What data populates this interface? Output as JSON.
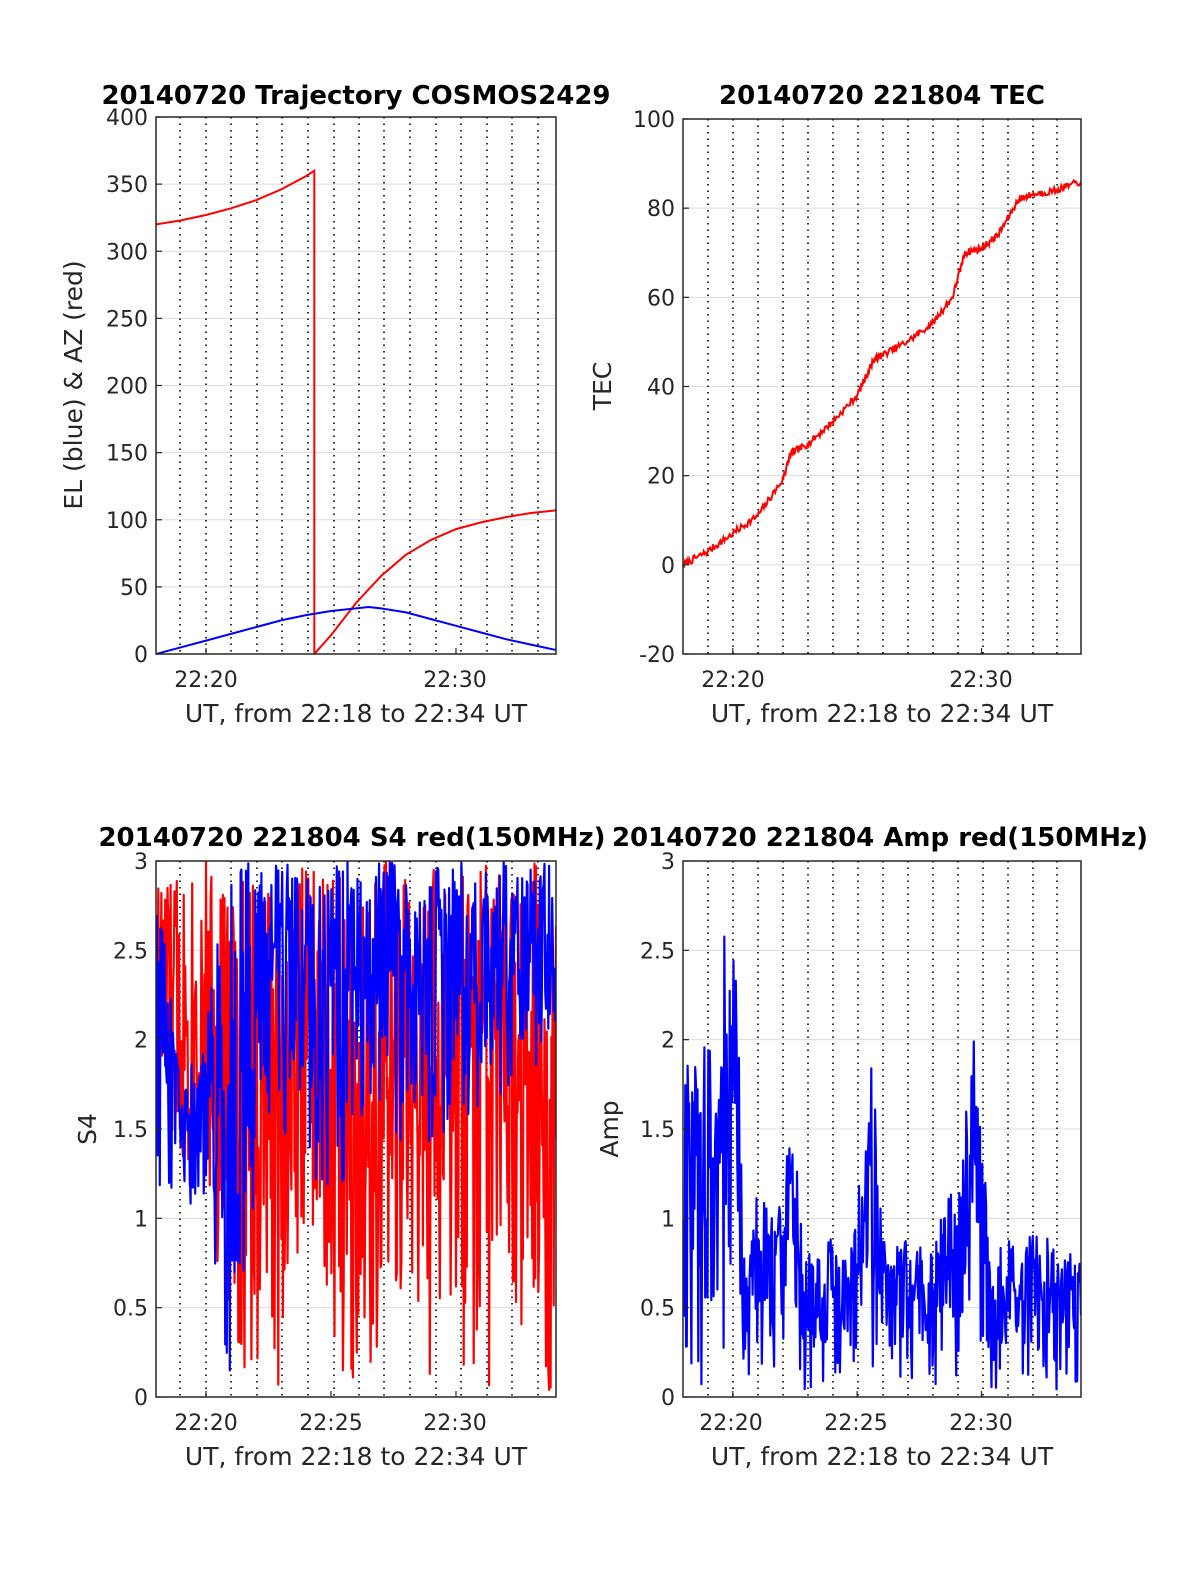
{
  "chart_data": [
    {
      "id": "traj",
      "type": "line",
      "title": "20140720 Trajectory COSMOS2429",
      "xlabel": "UT, from 22:18 to 22:34 UT",
      "ylabel": "EL (blue) & AZ (red)",
      "xlim": [
        "22:18",
        "22:34"
      ],
      "xtick_labels": [
        "22:20",
        "22:30"
      ],
      "ylim": [
        0,
        400
      ],
      "yticks": [
        0,
        50,
        100,
        150,
        200,
        250,
        300,
        350,
        400
      ],
      "grid": true,
      "series": [
        {
          "color": "#ff0000",
          "points": [
            [
              "22:18",
              320
            ],
            [
              "22:19",
              323
            ],
            [
              "22:20",
              327
            ],
            [
              "22:21",
              332
            ],
            [
              "22:22",
              338
            ],
            [
              "22:23",
              346
            ],
            [
              "22:24",
              356
            ],
            [
              "22:24:20",
              360
            ],
            [
              "22:24:20",
              0
            ],
            [
              "22:25",
              14
            ],
            [
              "22:26",
              38
            ],
            [
              "22:27",
              58
            ],
            [
              "22:28",
              74
            ],
            [
              "22:29",
              85
            ],
            [
              "22:30",
              93
            ],
            [
              "22:31",
              98
            ],
            [
              "22:32",
              102
            ],
            [
              "22:33",
              105
            ],
            [
              "22:34",
              107
            ]
          ]
        },
        {
          "color": "#0000ff",
          "points": [
            [
              "22:18",
              0
            ],
            [
              "22:19",
              5
            ],
            [
              "22:20",
              10
            ],
            [
              "22:21",
              15
            ],
            [
              "22:22",
              20
            ],
            [
              "22:23",
              25
            ],
            [
              "22:24",
              29
            ],
            [
              "22:25",
              32
            ],
            [
              "22:26",
              34
            ],
            [
              "22:26:30",
              35
            ],
            [
              "22:27",
              34
            ],
            [
              "22:28",
              31
            ],
            [
              "22:29",
              26
            ],
            [
              "22:30",
              21
            ],
            [
              "22:31",
              16
            ],
            [
              "22:32",
              11
            ],
            [
              "22:33",
              7
            ],
            [
              "22:34",
              3
            ]
          ]
        }
      ]
    },
    {
      "id": "tec",
      "type": "line",
      "title": "20140720 221804 TEC",
      "xlabel": "UT, from 22:18 to 22:34 UT",
      "ylabel": "TEC",
      "xlim": [
        "22:18",
        "22:34"
      ],
      "xtick_labels": [
        "22:20",
        "22:30"
      ],
      "ylim": [
        -20,
        100
      ],
      "yticks": [
        -20,
        0,
        20,
        40,
        60,
        80,
        100
      ],
      "grid": true,
      "series": [
        {
          "color": "#ff0000",
          "points": [
            [
              "22:18",
              0
            ],
            [
              "22:19",
              3
            ],
            [
              "22:20",
              7
            ],
            [
              "22:21",
              11
            ],
            [
              "22:22",
              19
            ],
            [
              "22:22:20",
              25
            ],
            [
              "22:23",
              27
            ],
            [
              "22:24",
              32
            ],
            [
              "22:25",
              38
            ],
            [
              "22:25:40",
              46
            ],
            [
              "22:26",
              47
            ],
            [
              "22:27",
              50
            ],
            [
              "22:28",
              54
            ],
            [
              "22:28:50",
              60
            ],
            [
              "22:29:20",
              70
            ],
            [
              "22:30",
              71
            ],
            [
              "22:30:40",
              74
            ],
            [
              "22:31:30",
              82
            ],
            [
              "22:32",
              83
            ],
            [
              "22:33",
              84
            ],
            [
              "22:34",
              86
            ]
          ]
        }
      ]
    },
    {
      "id": "s4",
      "type": "line",
      "title": "20140720 221804 S4 red(150MHz)",
      "xlabel": "UT, from 22:18 to 22:34 UT",
      "ylabel": "S4",
      "xlim": [
        "22:18",
        "22:34"
      ],
      "xtick_labels": [
        "22:20",
        "22:25",
        "22:30"
      ],
      "ylim": [
        0,
        3
      ],
      "yticks": [
        0,
        0.5,
        1,
        1.5,
        2,
        2.5,
        3
      ],
      "grid": true,
      "series": [
        {
          "color": "#ff0000",
          "envelope": [
            [
              "22:18",
              1.3,
              3
            ],
            [
              "22:19",
              1.1,
              3
            ],
            [
              "22:20",
              1.2,
              3
            ],
            [
              "22:21",
              0,
              3
            ],
            [
              "22:22",
              0,
              3
            ],
            [
              "22:23",
              0,
              3
            ],
            [
              "22:24",
              1.0,
              3
            ],
            [
              "22:25",
              0,
              3
            ],
            [
              "22:26",
              0,
              3
            ],
            [
              "22:27",
              0,
              3
            ],
            [
              "22:28",
              0,
              3
            ],
            [
              "22:29",
              0,
              3
            ],
            [
              "22:30",
              0,
              3
            ],
            [
              "22:31",
              0,
              3
            ],
            [
              "22:32",
              0,
              3
            ],
            [
              "22:33",
              0,
              3
            ],
            [
              "22:34",
              0,
              3
            ]
          ]
        },
        {
          "color": "#0000ff",
          "envelope": [
            [
              "22:18",
              1.2,
              3
            ],
            [
              "22:19",
              0.9,
              1.7
            ],
            [
              "22:20",
              0.9,
              2.2
            ],
            [
              "22:21",
              0,
              3
            ],
            [
              "22:22",
              1.1,
              3
            ],
            [
              "22:23",
              1.4,
              3
            ],
            [
              "22:24",
              1.3,
              3
            ],
            [
              "22:25",
              1.0,
              3
            ],
            [
              "22:26",
              1.1,
              3
            ],
            [
              "22:27",
              1.3,
              3
            ],
            [
              "22:28",
              1.4,
              3
            ],
            [
              "22:29",
              1.2,
              3
            ],
            [
              "22:30",
              1.5,
              3
            ],
            [
              "22:31",
              1.6,
              3
            ],
            [
              "22:32",
              1.7,
              3
            ],
            [
              "22:33",
              1.8,
              3
            ],
            [
              "22:34",
              2.0,
              3
            ]
          ]
        }
      ]
    },
    {
      "id": "amp",
      "type": "line",
      "title": "20140720 221804 Amp red(150MHz)",
      "xlabel": "UT, from 22:18 to 22:34 UT",
      "ylabel": "Amp",
      "xlim": [
        "22:18",
        "22:34"
      ],
      "xtick_labels": [
        "22:20",
        "22:25",
        "22:30"
      ],
      "ylim": [
        0,
        3
      ],
      "yticks": [
        0,
        0.5,
        1,
        1.5,
        2,
        2.5,
        3
      ],
      "grid": true,
      "series": [
        {
          "color": "#0000ff",
          "envelope": [
            [
              "22:18",
              0,
              1.8
            ],
            [
              "22:18:40",
              0,
              2.0
            ],
            [
              "22:19:20",
              0,
              1.9
            ],
            [
              "22:19:40",
              0,
              2.6
            ],
            [
              "22:20:10",
              0,
              2.4
            ],
            [
              "22:20:30",
              0,
              0.7
            ],
            [
              "22:21",
              0,
              1.2
            ],
            [
              "22:21:40",
              0,
              1.0
            ],
            [
              "22:22",
              0,
              1.3
            ],
            [
              "22:22:20",
              0,
              1.6
            ],
            [
              "22:23",
              0,
              0.8
            ],
            [
              "22:24",
              0,
              0.9
            ],
            [
              "22:24:40",
              0,
              0.8
            ],
            [
              "22:25:20",
              0,
              1.6
            ],
            [
              "22:25:40",
              0,
              2.0
            ],
            [
              "22:26",
              0,
              0.9
            ],
            [
              "22:27",
              0,
              0.9
            ],
            [
              "22:28",
              0,
              0.8
            ],
            [
              "22:28:40",
              0,
              1.2
            ],
            [
              "22:29:10",
              0,
              1.3
            ],
            [
              "22:29:40",
              0,
              2.1
            ],
            [
              "22:30",
              0,
              1.5
            ],
            [
              "22:30:30",
              0,
              0.8
            ],
            [
              "22:31",
              0,
              0.9
            ],
            [
              "22:32",
              0,
              0.9
            ],
            [
              "22:32:30",
              0,
              1.0
            ],
            [
              "22:33",
              0,
              0.8
            ],
            [
              "22:34",
              0,
              0.8
            ]
          ]
        }
      ]
    }
  ]
}
